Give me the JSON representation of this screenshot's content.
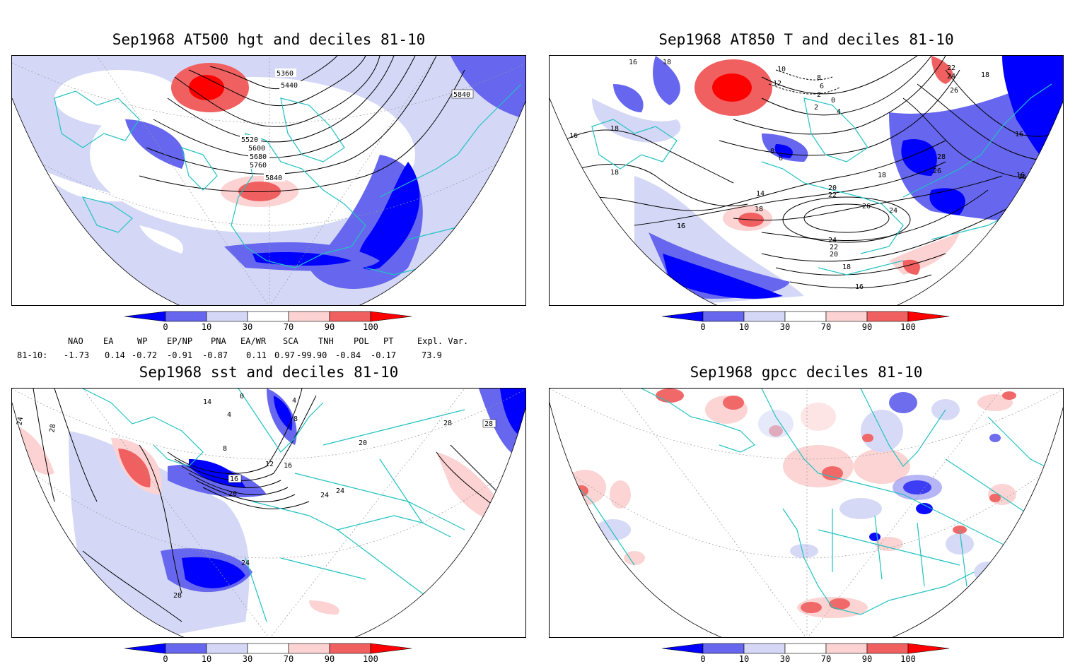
{
  "panels": {
    "p1": {
      "title": "Sep1968 AT500 hgt and deciles 81-10",
      "contour_labels": [
        "5360",
        "5440",
        "5520",
        "5600",
        "5680",
        "5760",
        "5840",
        "5840"
      ]
    },
    "p2": {
      "title": "Sep1968 AT850 T and deciles 81-10",
      "contour_labels": [
        "16",
        "18",
        "10",
        "8",
        "6",
        "12",
        "2",
        "0",
        "2",
        "4",
        "22",
        "24",
        "18",
        "26",
        "16",
        "18",
        "18",
        "16",
        "16",
        "28",
        "26",
        "16",
        "18",
        "14",
        "20",
        "22",
        "18",
        "26",
        "24",
        "24",
        "22",
        "20",
        "18",
        "16",
        "16",
        "16",
        "8",
        "6"
      ]
    },
    "p3": {
      "title": "Sep1968 sst and deciles 81-10",
      "contour_labels": [
        "24",
        "28",
        "14",
        "4",
        "0",
        "8",
        "12",
        "16",
        "16",
        "20",
        "24",
        "28",
        "28",
        "20",
        "24",
        "24",
        "28",
        "4",
        "8"
      ]
    },
    "p4": {
      "title": "Sep1968 gpcc deciles 81-10",
      "contour_labels": []
    }
  },
  "colorbar": {
    "ticks": [
      "0",
      "10",
      "30",
      "70",
      "90",
      "100"
    ],
    "colors": [
      "#0000ff",
      "#6666ee",
      "#d4d8f6",
      "#ffffff",
      "#fcd2d2",
      "#f06060",
      "#ff0000"
    ]
  },
  "indices": {
    "headers": [
      "NAO",
      "EA",
      "WP",
      "EP/NP",
      "PNA",
      "EA/WR",
      "SCA",
      "TNH",
      "POL",
      "PT",
      "Expl. Var."
    ],
    "row_label": "81-10:",
    "values": [
      "-1.73",
      "0.14",
      "-0.72",
      "-0.91",
      "-0.87",
      "0.11",
      "0.97",
      "-99.90",
      "-0.84",
      "-0.17",
      "73.9"
    ]
  },
  "colors": {
    "coast": "#22c2c2",
    "strong_blue": "#0000ff",
    "mid_blue": "#6666ee",
    "light_blue": "#d4d8f6",
    "light_red": "#fcd2d2",
    "mid_red": "#f06060",
    "strong_red": "#ff0000"
  }
}
